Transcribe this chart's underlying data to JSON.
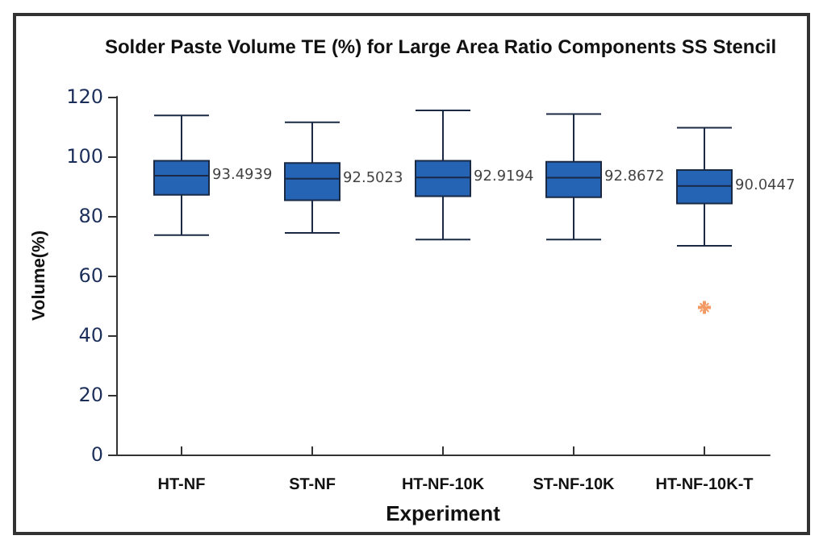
{
  "chart_data": {
    "type": "box",
    "title": "Solder Paste Volume TE (%) for Large Area Ratio Components SS Stencil",
    "xlabel": "Experiment",
    "ylabel": "Volume(%)",
    "categories": [
      "HT-NF",
      "ST-NF",
      "HT-NF-10K",
      "ST-NF-10K",
      "HT-NF-10K-T"
    ],
    "series": [
      {
        "color": "#2563b4",
        "value_labels": [
          "93.4939",
          "92.5023",
          "92.9194",
          "92.8672",
          "90.0447"
        ],
        "boxes": [
          {
            "low": 73.6,
            "q1": 87.1,
            "median": 93.4939,
            "q3": 98.5,
            "high": 113.7
          },
          {
            "low": 74.3,
            "q1": 85.3,
            "median": 92.5023,
            "q3": 97.8,
            "high": 111.4
          },
          {
            "low": 72.1,
            "q1": 86.6,
            "median": 92.9194,
            "q3": 98.5,
            "high": 115.4
          },
          {
            "low": 72.1,
            "q1": 86.3,
            "median": 92.8672,
            "q3": 98.2,
            "high": 114.2
          },
          {
            "low": 70.0,
            "q1": 84.2,
            "median": 90.0447,
            "q3": 95.4,
            "high": 109.6
          }
        ]
      },
      {
        "type": "scatter",
        "color": "#f07f3c",
        "marker": "cross",
        "x": [
          "HT-NF-10K-T"
        ],
        "values": [
          49.3
        ]
      }
    ],
    "ylim": [
      0,
      120
    ],
    "yticks": [
      0,
      20,
      40,
      60,
      80,
      100,
      120
    ],
    "grid": false
  }
}
